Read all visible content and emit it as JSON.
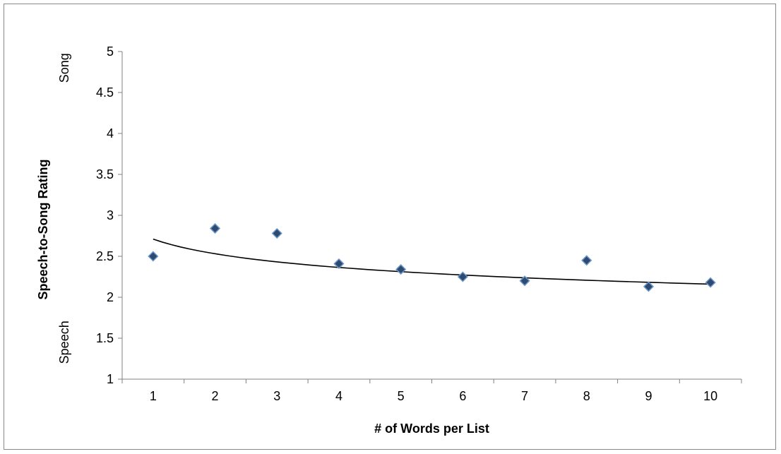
{
  "chart_data": {
    "type": "scatter",
    "xlabel": "# of Words per List",
    "ylabel": "Speech-to-Song Rating",
    "ylabel_top_annotation": "Song",
    "ylabel_bottom_annotation": "Speech",
    "xlim": [
      0.5,
      10.5
    ],
    "ylim": [
      1,
      5
    ],
    "x_ticks": [
      "1",
      "2",
      "3",
      "4",
      "5",
      "6",
      "7",
      "8",
      "9",
      "10"
    ],
    "y_ticks": [
      "1",
      "1.5",
      "2",
      "2.5",
      "3",
      "3.5",
      "4",
      "4.5",
      "5"
    ],
    "grid": false,
    "legend": "none",
    "series": [
      {
        "x": [
          1,
          2,
          3,
          4,
          5,
          6,
          7,
          8,
          9,
          10
        ],
        "y": [
          2.5,
          2.84,
          2.78,
          2.41,
          2.34,
          2.25,
          2.2,
          2.45,
          2.13,
          2.18
        ],
        "marker": "diamond",
        "color": "#2e4a70",
        "edge_color": "#6a96c8"
      }
    ],
    "trendline": {
      "type": "power",
      "from_x": 1,
      "to_x": 10,
      "y_start": 2.71,
      "y_end": 2.16,
      "color": "#000000"
    }
  }
}
